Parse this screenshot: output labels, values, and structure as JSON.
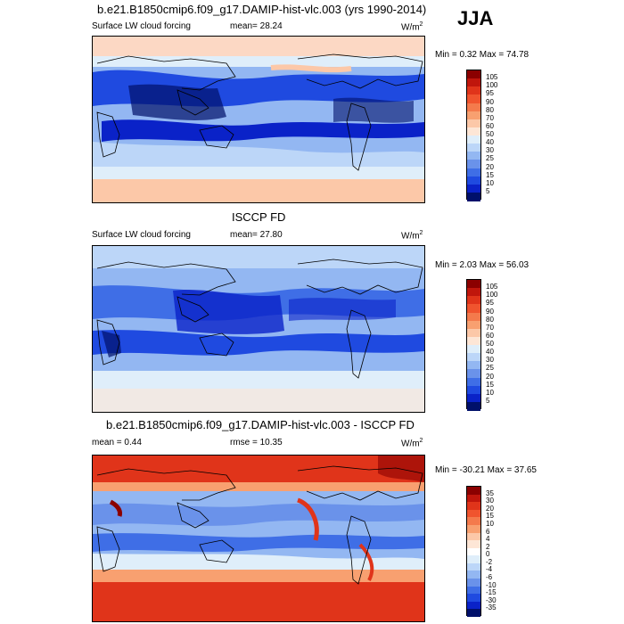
{
  "season": "JJA",
  "panels": [
    {
      "title": "b.e21.B1850cmip6.f09_g17.DAMIP-hist-vlc.003 (yrs 1990-2014)",
      "variable": "Surface LW cloud forcing",
      "mean_text": "mean=  28.24",
      "units": "W/m",
      "units_sup": "2",
      "minmax_text": "Min =   0.32 Max =  74.78",
      "colorbar": {
        "labels": [
          "105",
          "100",
          "95",
          "90",
          "80",
          "70",
          "60",
          "50",
          "40",
          "30",
          "25",
          "20",
          "15",
          "10",
          "5"
        ],
        "colors": [
          "#8b0000",
          "#c0160c",
          "#e0341a",
          "#f0542e",
          "#f47a4c",
          "#f8a070",
          "#fcc8a8",
          "#fde6d6",
          "#dfeefa",
          "#bcd6f8",
          "#93b7f2",
          "#6a92ea",
          "#3f6ee6",
          "#1f4ae0",
          "#0a22c8",
          "#00106a"
        ]
      }
    },
    {
      "title": "ISCCP FD",
      "variable": "Surface LW cloud forcing",
      "mean_text": "mean=  27.80",
      "units": "W/m",
      "units_sup": "2",
      "minmax_text": "Min =   2.03 Max =  56.03",
      "colorbar": {
        "labels": [
          "105",
          "100",
          "95",
          "90",
          "80",
          "70",
          "60",
          "50",
          "40",
          "30",
          "25",
          "20",
          "15",
          "10",
          "5"
        ],
        "colors": [
          "#8b0000",
          "#c0160c",
          "#e0341a",
          "#f0542e",
          "#f47a4c",
          "#f8a070",
          "#fcc8a8",
          "#fde6d6",
          "#dfeefa",
          "#bcd6f8",
          "#93b7f2",
          "#6a92ea",
          "#3f6ee6",
          "#1f4ae0",
          "#0a22c8",
          "#00106a"
        ]
      }
    },
    {
      "title": "b.e21.B1850cmip6.f09_g17.DAMIP-hist-vlc.003 - ISCCP FD",
      "mean_text": "mean =   0.44",
      "rmse_text": "rmse =  10.35",
      "units": "W/m",
      "units_sup": "2",
      "minmax_text": "Min = -30.21 Max =  37.65",
      "colorbar": {
        "labels": [
          "35",
          "30",
          "20",
          "15",
          "10",
          "6",
          "4",
          "2",
          "0",
          "-2",
          "-4",
          "-6",
          "-10",
          "-15",
          "-30",
          "-35"
        ],
        "colors": [
          "#8b0000",
          "#c0160c",
          "#e0341a",
          "#f0542e",
          "#f47a4c",
          "#f8a070",
          "#fcc8a8",
          "#fde6d6",
          "#ffffff",
          "#dfeefa",
          "#bcd6f8",
          "#93b7f2",
          "#6a92ea",
          "#3f6ee6",
          "#1f4ae0",
          "#0a22c8",
          "#00106a"
        ]
      }
    }
  ]
}
